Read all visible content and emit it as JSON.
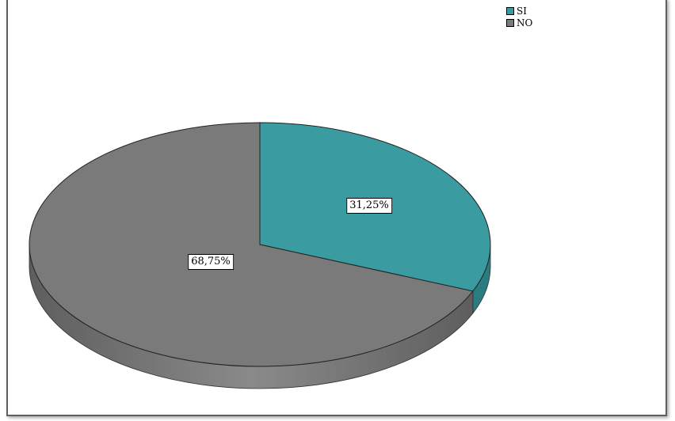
{
  "chart_data": {
    "type": "pie",
    "title": "",
    "categories": [
      "SI",
      "NO"
    ],
    "values": [
      31.25,
      68.75
    ],
    "labels": [
      "31,25%",
      "68,75%"
    ],
    "colors": [
      "#3a9ba0",
      "#7a7a7a"
    ],
    "side_colors": [
      "#2a7c81",
      "#606060"
    ],
    "legend": {
      "position": "top-right",
      "items": [
        "SI",
        "NO"
      ]
    },
    "style": "3d"
  }
}
